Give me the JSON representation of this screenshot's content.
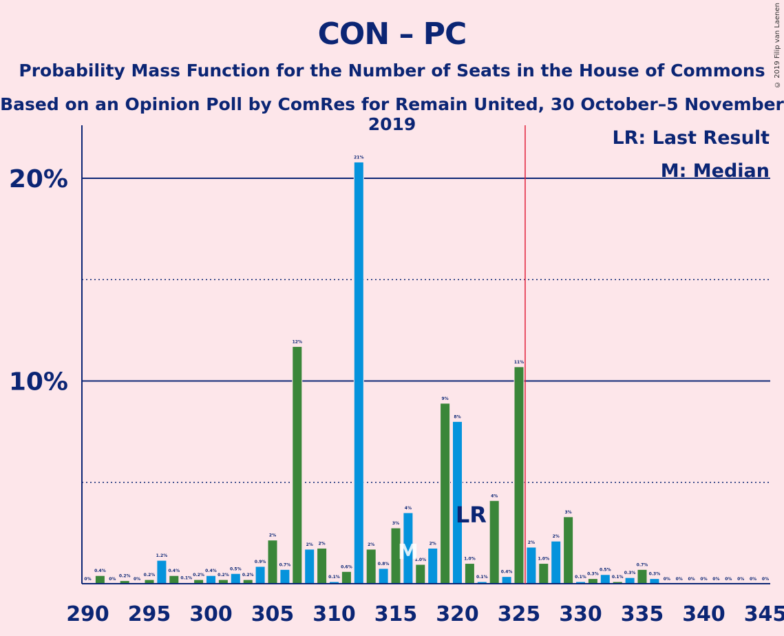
{
  "title": "CON – PC",
  "subtitle_1": "Probability Mass Function for the Number of Seats in the House of Commons",
  "subtitle_2": "Based on an Opinion Poll by ComRes for Remain United, 30 October–5 November 2019",
  "copyright": "© 2019 Filip van Laenen",
  "chart_data": {
    "type": "bar",
    "x": [
      290,
      291,
      292,
      293,
      294,
      295,
      296,
      297,
      298,
      299,
      300,
      301,
      302,
      303,
      304,
      305,
      306,
      307,
      308,
      309,
      310,
      311,
      312,
      313,
      314,
      315,
      316,
      317,
      318,
      319,
      320,
      321,
      322,
      323,
      324,
      325,
      326,
      327,
      328,
      329,
      330,
      331,
      332,
      333,
      334,
      335,
      336,
      337,
      338,
      339,
      340,
      341,
      342,
      343,
      344,
      345
    ],
    "values": [
      0,
      0.4,
      0,
      0.15,
      0,
      0.2,
      1.15,
      0.4,
      0.05,
      0.2,
      0.4,
      0.2,
      0.5,
      0.2,
      0.85,
      2.15,
      0.7,
      11.7,
      1.7,
      1.75,
      0.1,
      0.6,
      20.8,
      1.7,
      0.75,
      2.75,
      3.5,
      0.95,
      1.75,
      8.9,
      8.0,
      1.0,
      0.1,
      4.1,
      0.35,
      10.7,
      1.8,
      1.0,
      2.1,
      3.3,
      0.1,
      0.25,
      0.45,
      0.1,
      0.3,
      0.7,
      0.25,
      0,
      0,
      0,
      0,
      0,
      0,
      0,
      0,
      0
    ],
    "labels": [
      "0%",
      "0.4%",
      "0%",
      "0.2%",
      "0%",
      "0.2%",
      "1.2%",
      "0.4%",
      "0.1%",
      "0.2%",
      "0.4%",
      "0.2%",
      "0.5%",
      "0.2%",
      "0.9%",
      "2%",
      "0.7%",
      "12%",
      "2%",
      "2%",
      "0.1%",
      "0.6%",
      "21%",
      "2%",
      "0.8%",
      "3%",
      "4%",
      "1.0%",
      "2%",
      "9%",
      "8%",
      "1.0%",
      "0.1%",
      "4%",
      "0.4%",
      "11%",
      "2%",
      "1.0%",
      "2%",
      "3%",
      "0.1%",
      "0.3%",
      "0.5%",
      "0.1%",
      "0.3%",
      "0.7%",
      "0.3%",
      "0%",
      "0%",
      "0%",
      "0%",
      "0%",
      "0%",
      "0%",
      "0%",
      "0%"
    ],
    "x_tick_labels": [
      "290",
      "295",
      "300",
      "305",
      "310",
      "315",
      "320",
      "325",
      "330",
      "335",
      "340",
      "345"
    ],
    "y_tick_labels": [
      "10%",
      "20%"
    ],
    "ylim": [
      0,
      22.5
    ],
    "majority_line": 325.5,
    "median": 316,
    "last_result": 321,
    "legend": [
      "LR: Last Result",
      "M: Median"
    ],
    "median_marker": "M",
    "last_result_marker": "LR",
    "colors": {
      "bar_a": "#3a8639",
      "bar_b": "#0593dc",
      "axis": "#0b2574",
      "majority": "#e0203a"
    }
  }
}
